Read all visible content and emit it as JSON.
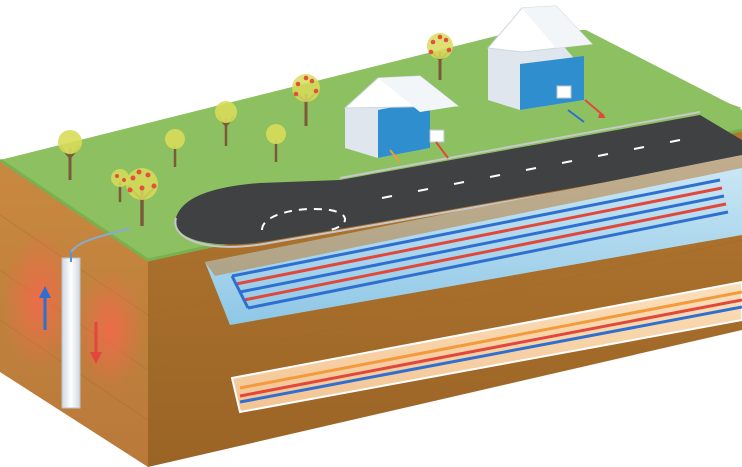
{
  "scene": {
    "type": "illustration",
    "subject": "geothermal-heat-exchange-cross-section",
    "text_labels": []
  },
  "colors": {
    "grass": "#8cc061",
    "grass_edge": "#79b150",
    "soil_front": "#c8893f",
    "soil_side": "#a86d2a",
    "soil_dark": "#8e5820",
    "road": "#3f4143",
    "road_curb": "#c7c8c8",
    "trench": "#9fd3ec",
    "pipe_blue": "#2e6fd0",
    "pipe_red": "#e2473b",
    "pipe_orange": "#f39a3b",
    "well_glow": "#f26a4b",
    "house_wall": "#dfe6ee",
    "house_roof": "#ffffff",
    "house_interior": "#2f8fce",
    "tree_trunk": "#7a5a3a",
    "tree_leaf": "#d8dc5a",
    "tree_blossom": "#e5503c"
  },
  "icons": {
    "tree": "deciduous-tree-icon",
    "house": "house-icon",
    "arrow_up": "arrow-up-icon",
    "arrow_down": "arrow-down-icon",
    "arrow_right": "arrow-right-icon"
  },
  "elements": {
    "trees": 8,
    "houses": 2,
    "horizontal_loop_pipes": 5,
    "vertical_well_bores": 1,
    "deep_horizontal_bore": 1
  }
}
